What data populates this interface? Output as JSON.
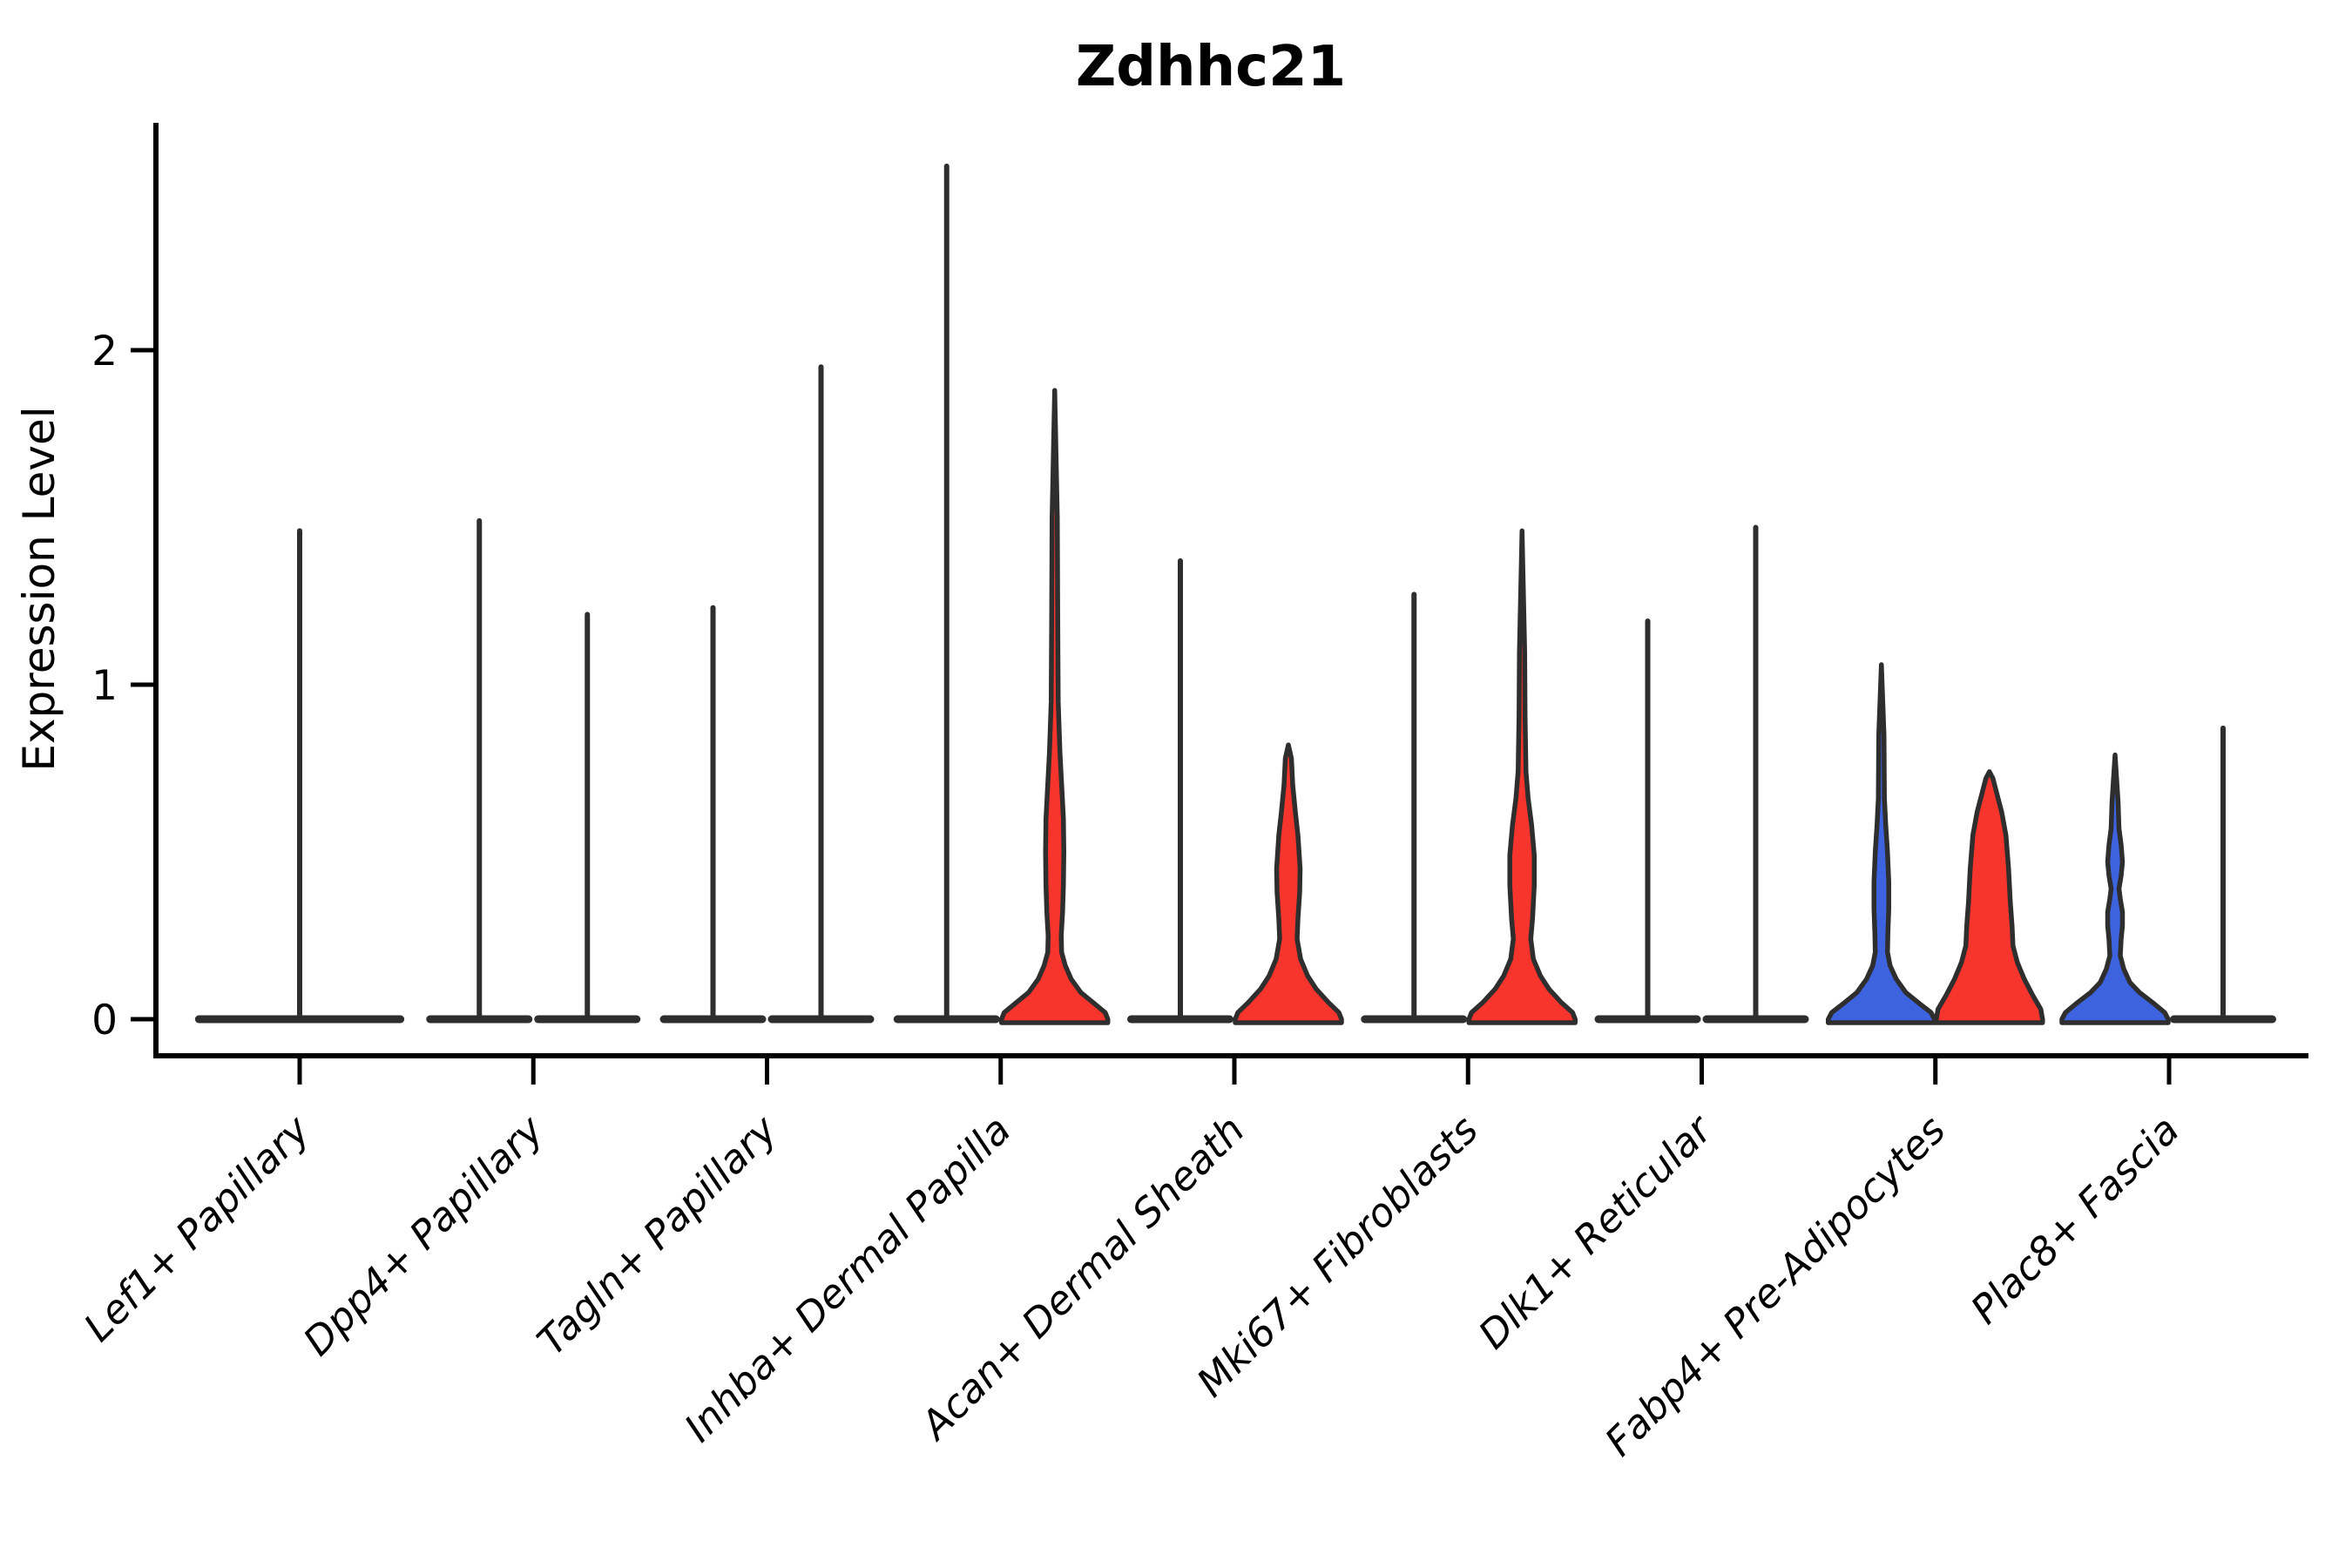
{
  "chart_data": {
    "type": "violin",
    "title": "Zdhhc21",
    "xlabel": "",
    "ylabel": "Expression Level",
    "ylim": [
      -0.12,
      2.72
    ],
    "yticks": [
      0,
      1,
      2
    ],
    "grid": false,
    "legend": "none",
    "categories": [
      "Lef1+ Papillary",
      "Dpp4+ Papillary",
      "Tagln+ Papillary",
      "Inhba+ Dermal Papilla",
      "Acan+ Dermal Sheath",
      "Mki67+ Fibroblasts",
      "Dlk1+ Reticular",
      "Fabp4+ Pre-Adipocytes",
      "Plac8+ Fascia"
    ],
    "colors": {
      "blue_fill": "#3E63DE",
      "red_fill": "#F8352C",
      "outline": "#2E2E2E",
      "axis": "#000000"
    },
    "violins": [
      {
        "cat": 0,
        "slot": "full",
        "kind": "spike",
        "top": 1.46,
        "base_hw": 1.97,
        "fill": null
      },
      {
        "cat": 1,
        "slot": "left",
        "kind": "spike",
        "top": 1.49,
        "base_hw": 1.0,
        "fill": null
      },
      {
        "cat": 1,
        "slot": "right",
        "kind": "spike",
        "top": 1.21,
        "base_hw": 1.0,
        "fill": null
      },
      {
        "cat": 2,
        "slot": "left",
        "kind": "spike",
        "top": 1.23,
        "base_hw": 1.0,
        "fill": null
      },
      {
        "cat": 2,
        "slot": "right",
        "kind": "spike",
        "top": 1.95,
        "base_hw": 1.0,
        "fill": null
      },
      {
        "cat": 3,
        "slot": "left",
        "kind": "spike",
        "top": 2.55,
        "base_hw": 1.0,
        "fill": null
      },
      {
        "cat": 3,
        "slot": "right",
        "kind": "violin",
        "top": 1.88,
        "fill": "red_fill",
        "profile": [
          [
            0,
            1
          ],
          [
            0.02,
            0.95
          ],
          [
            0.05,
            0.72
          ],
          [
            0.08,
            0.49
          ],
          [
            0.12,
            0.31
          ],
          [
            0.16,
            0.2
          ],
          [
            0.2,
            0.13
          ],
          [
            0.25,
            0.123
          ],
          [
            0.32,
            0.148
          ],
          [
            0.4,
            0.164
          ],
          [
            0.5,
            0.172
          ],
          [
            0.6,
            0.164
          ],
          [
            0.7,
            0.131
          ],
          [
            0.8,
            0.098
          ],
          [
            0.95,
            0.066
          ],
          [
            1.2,
            0.057
          ],
          [
            1.5,
            0.049
          ],
          [
            1.88,
            0
          ]
        ]
      },
      {
        "cat": 4,
        "slot": "left",
        "kind": "spike",
        "top": 1.37,
        "base_hw": 1.0,
        "fill": null
      },
      {
        "cat": 4,
        "slot": "right",
        "kind": "violin",
        "top": 0.82,
        "fill": "red_fill",
        "profile": [
          [
            0,
            1
          ],
          [
            0.02,
            0.95
          ],
          [
            0.05,
            0.754
          ],
          [
            0.09,
            0.525
          ],
          [
            0.13,
            0.361
          ],
          [
            0.18,
            0.23
          ],
          [
            0.24,
            0.164
          ],
          [
            0.3,
            0.18
          ],
          [
            0.38,
            0.213
          ],
          [
            0.45,
            0.221
          ],
          [
            0.55,
            0.18
          ],
          [
            0.62,
            0.131
          ],
          [
            0.7,
            0.082
          ],
          [
            0.78,
            0.057
          ],
          [
            0.82,
            0
          ]
        ]
      },
      {
        "cat": 5,
        "slot": "left",
        "kind": "spike",
        "top": 1.27,
        "base_hw": 1.0,
        "fill": null
      },
      {
        "cat": 5,
        "slot": "right",
        "kind": "violin",
        "top": 1.46,
        "fill": "red_fill",
        "profile": [
          [
            0,
            1
          ],
          [
            0.02,
            0.95
          ],
          [
            0.05,
            0.738
          ],
          [
            0.09,
            0.508
          ],
          [
            0.13,
            0.344
          ],
          [
            0.18,
            0.213
          ],
          [
            0.24,
            0.164
          ],
          [
            0.3,
            0.197
          ],
          [
            0.4,
            0.23
          ],
          [
            0.49,
            0.23
          ],
          [
            0.58,
            0.18
          ],
          [
            0.66,
            0.115
          ],
          [
            0.74,
            0.074
          ],
          [
            0.9,
            0.057
          ],
          [
            1.1,
            0.049
          ],
          [
            1.46,
            0
          ]
        ]
      },
      {
        "cat": 6,
        "slot": "left",
        "kind": "spike",
        "top": 1.19,
        "base_hw": 1.0,
        "fill": null
      },
      {
        "cat": 6,
        "slot": "right",
        "kind": "spike",
        "top": 1.47,
        "base_hw": 1.0,
        "fill": null
      },
      {
        "cat": 7,
        "slot": "left",
        "kind": "violin",
        "top": 1.06,
        "fill": "blue_fill",
        "profile": [
          [
            0,
            1
          ],
          [
            0.02,
            0.934
          ],
          [
            0.05,
            0.689
          ],
          [
            0.08,
            0.459
          ],
          [
            0.12,
            0.279
          ],
          [
            0.16,
            0.164
          ],
          [
            0.2,
            0.115
          ],
          [
            0.26,
            0.123
          ],
          [
            0.33,
            0.139
          ],
          [
            0.41,
            0.139
          ],
          [
            0.5,
            0.115
          ],
          [
            0.58,
            0.082
          ],
          [
            0.66,
            0.057
          ],
          [
            0.85,
            0.049
          ],
          [
            1.06,
            0
          ]
        ]
      },
      {
        "cat": 7,
        "slot": "right",
        "kind": "violin",
        "top": 0.74,
        "fill": "red_fill",
        "profile": [
          [
            0,
            1
          ],
          [
            0.03,
            0.967
          ],
          [
            0.07,
            0.82
          ],
          [
            0.12,
            0.656
          ],
          [
            0.17,
            0.525
          ],
          [
            0.22,
            0.443
          ],
          [
            0.28,
            0.426
          ],
          [
            0.35,
            0.393
          ],
          [
            0.45,
            0.361
          ],
          [
            0.55,
            0.311
          ],
          [
            0.62,
            0.23
          ],
          [
            0.68,
            0.131
          ],
          [
            0.72,
            0.066
          ],
          [
            0.74,
            0
          ]
        ]
      },
      {
        "cat": 8,
        "slot": "left",
        "kind": "violin",
        "top": 0.79,
        "fill": "blue_fill",
        "profile": [
          [
            0,
            1
          ],
          [
            0.02,
            0.934
          ],
          [
            0.05,
            0.705
          ],
          [
            0.08,
            0.459
          ],
          [
            0.11,
            0.279
          ],
          [
            0.15,
            0.164
          ],
          [
            0.19,
            0.098
          ],
          [
            0.24,
            0.115
          ],
          [
            0.28,
            0.139
          ],
          [
            0.32,
            0.139
          ],
          [
            0.36,
            0.098
          ],
          [
            0.39,
            0.074
          ],
          [
            0.43,
            0.115
          ],
          [
            0.47,
            0.139
          ],
          [
            0.52,
            0.115
          ],
          [
            0.57,
            0.074
          ],
          [
            0.65,
            0.057
          ],
          [
            0.79,
            0
          ]
        ]
      },
      {
        "cat": 8,
        "slot": "right",
        "kind": "spike",
        "top": 0.87,
        "base_hw": 1.0,
        "fill": null
      }
    ]
  }
}
